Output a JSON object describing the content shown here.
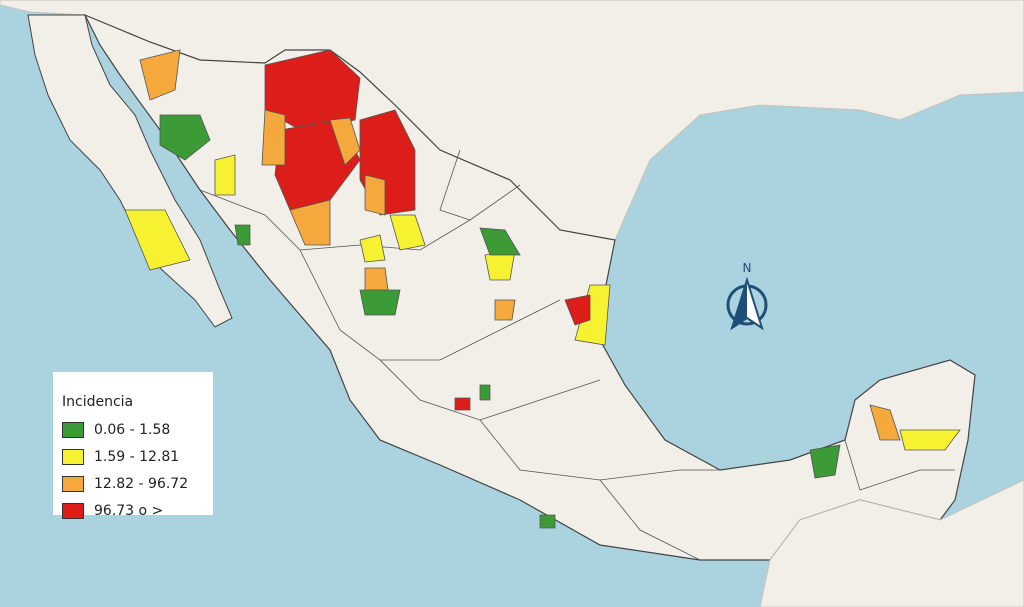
{
  "legend": {
    "title": "Incidencia",
    "items": [
      {
        "label": "0.06 - 1.58",
        "color": "#3c9b36"
      },
      {
        "label": "1.59 - 12.81",
        "color": "#f7f231"
      },
      {
        "label": "12.82 - 96.72",
        "color": "#f5a93c"
      },
      {
        "label": "96.73 o >",
        "color": "#dd1d1a"
      }
    ]
  },
  "north_label": "N"
}
